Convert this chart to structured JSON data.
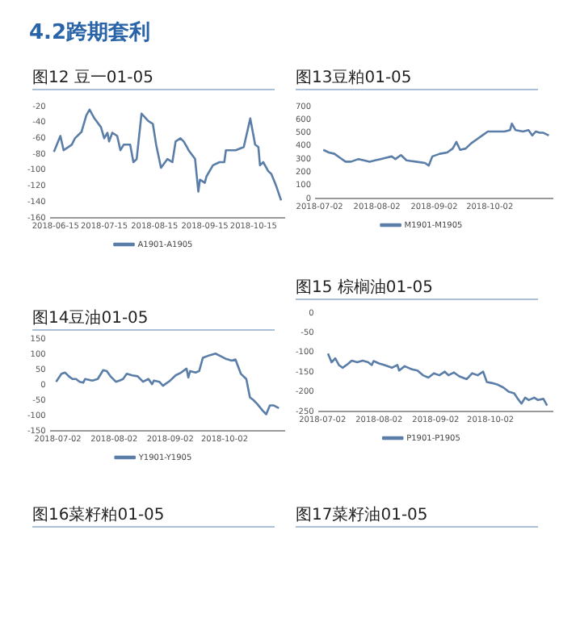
{
  "chart_data": [
    {
      "type": "line",
      "title": "图12 豆一01-05",
      "annotations": [
        "4.2跨期套利"
      ],
      "legend": "bottom",
      "xlim": [
        "2018-06-12",
        "2018-11-03"
      ],
      "xticks": [
        "2018-06-15",
        "2018-07-15",
        "2018-08-15",
        "2018-09-15",
        "2018-10-15"
      ],
      "ylim": [
        -160,
        -20
      ],
      "yticks": [
        -160,
        -140,
        -120,
        -100,
        -80,
        -60,
        -40,
        -20
      ],
      "x": [
        "2018-06-14",
        "2018-06-18",
        "2018-06-20",
        "2018-06-25",
        "2018-06-27",
        "2018-07-01",
        "2018-07-04",
        "2018-07-06",
        "2018-07-09",
        "2018-07-13",
        "2018-07-15",
        "2018-07-17",
        "2018-07-18",
        "2018-07-20",
        "2018-07-23",
        "2018-07-25",
        "2018-07-27",
        "2018-07-31",
        "2018-08-02",
        "2018-08-04",
        "2018-08-07",
        "2018-08-11",
        "2018-08-14",
        "2018-08-16",
        "2018-08-19",
        "2018-08-23",
        "2018-08-26",
        "2018-08-28",
        "2018-08-31",
        "2018-09-02",
        "2018-09-04",
        "2018-09-05",
        "2018-09-09",
        "2018-09-11",
        "2018-09-12",
        "2018-09-15",
        "2018-09-16",
        "2018-09-20",
        "2018-09-24",
        "2018-09-27",
        "2018-09-28",
        "2018-10-04",
        "2018-10-09",
        "2018-10-13",
        "2018-10-16",
        "2018-10-18",
        "2018-10-19",
        "2018-10-21",
        "2018-10-24",
        "2018-10-26",
        "2018-10-29",
        "2018-11-01"
      ],
      "series": [
        {
          "name": "A1901-A1905",
          "color": "#5a7ea8",
          "values": [
            -77,
            -57,
            -75,
            -68,
            -60,
            -52,
            -31,
            -24,
            -35,
            -46,
            -60,
            -53,
            -64,
            -53,
            -57,
            -75,
            -68,
            -68,
            -90,
            -86,
            -29,
            -38,
            -42,
            -68,
            -97,
            -86,
            -90,
            -64,
            -60,
            -64,
            -71,
            -75,
            -86,
            -127,
            -112,
            -116,
            -108,
            -94,
            -90,
            -90,
            -75,
            -75,
            -71,
            -35,
            -68,
            -71,
            -94,
            -90,
            -101,
            -105,
            -120,
            -138
          ]
        }
      ]
    },
    {
      "type": "line",
      "title": "图13豆粕01-05",
      "legend": "bottom",
      "xlim": [
        "2018-06-30",
        "2018-11-05"
      ],
      "xticks": [
        "2018-07-02",
        "2018-08-02",
        "2018-09-02",
        "2018-10-02"
      ],
      "ylim": [
        0,
        700
      ],
      "yticks": [
        0,
        100,
        200,
        300,
        400,
        500,
        600,
        700
      ],
      "x": [
        "2018-07-04",
        "2018-07-07",
        "2018-07-10",
        "2018-07-13",
        "2018-07-16",
        "2018-07-19",
        "2018-07-23",
        "2018-07-26",
        "2018-07-29",
        "2018-08-01",
        "2018-08-04",
        "2018-08-07",
        "2018-08-10",
        "2018-08-12",
        "2018-08-15",
        "2018-08-18",
        "2018-08-23",
        "2018-08-28",
        "2018-08-30",
        "2018-09-01",
        "2018-09-05",
        "2018-09-09",
        "2018-09-12",
        "2018-09-14",
        "2018-09-16",
        "2018-09-19",
        "2018-09-22",
        "2018-09-25",
        "2018-09-28",
        "2018-10-01",
        "2018-10-05",
        "2018-10-10",
        "2018-10-13",
        "2018-10-14",
        "2018-10-16",
        "2018-10-20",
        "2018-10-23",
        "2018-10-25",
        "2018-10-27",
        "2018-10-29",
        "2018-10-31",
        "2018-11-03"
      ],
      "series": [
        {
          "name": "M1901-M1905",
          "color": "#5a7ea8",
          "values": [
            370,
            350,
            340,
            310,
            280,
            280,
            300,
            290,
            280,
            290,
            300,
            310,
            320,
            300,
            330,
            290,
            280,
            270,
            250,
            320,
            340,
            350,
            380,
            430,
            370,
            380,
            420,
            450,
            480,
            510,
            510,
            510,
            520,
            570,
            520,
            510,
            520,
            480,
            510,
            500,
            500,
            480
          ]
        }
      ]
    },
    {
      "type": "line",
      "title": "图14豆油01-05",
      "annotations": [
        "图16菜籽粕01-05"
      ],
      "legend": "bottom",
      "xlim": [
        "2018-06-28",
        "2018-11-04"
      ],
      "xticks": [
        "2018-07-02",
        "2018-08-02",
        "2018-09-02",
        "2018-10-02"
      ],
      "ylim": [
        -150,
        150
      ],
      "yticks": [
        -150,
        -100,
        -50,
        0,
        50,
        100,
        150
      ],
      "x": [
        "2018-07-01",
        "2018-07-04",
        "2018-07-06",
        "2018-07-08",
        "2018-07-10",
        "2018-07-12",
        "2018-07-14",
        "2018-07-16",
        "2018-07-17",
        "2018-07-21",
        "2018-07-24",
        "2018-07-27",
        "2018-07-29",
        "2018-07-31",
        "2018-08-03",
        "2018-08-05",
        "2018-08-07",
        "2018-08-09",
        "2018-08-12",
        "2018-08-15",
        "2018-08-18",
        "2018-08-21",
        "2018-08-23",
        "2018-08-24",
        "2018-08-27",
        "2018-08-29",
        "2018-09-02",
        "2018-09-05",
        "2018-09-08",
        "2018-09-11",
        "2018-09-12",
        "2018-09-13",
        "2018-09-16",
        "2018-09-18",
        "2018-09-20",
        "2018-09-24",
        "2018-09-27",
        "2018-09-30",
        "2018-10-03",
        "2018-10-06",
        "2018-10-08",
        "2018-10-11",
        "2018-10-14",
        "2018-10-16",
        "2018-10-18",
        "2018-10-20",
        "2018-10-23",
        "2018-10-25",
        "2018-10-27",
        "2018-10-29",
        "2018-11-01"
      ],
      "series": [
        {
          "name": "Y1901-Y1905",
          "color": "#5a7ea8",
          "values": [
            10,
            36,
            40,
            28,
            19,
            19,
            10,
            7,
            19,
            14,
            19,
            48,
            45,
            28,
            10,
            14,
            19,
            36,
            31,
            28,
            10,
            19,
            2,
            14,
            10,
            -3,
            14,
            31,
            40,
            53,
            24,
            45,
            40,
            45,
            88,
            97,
            102,
            93,
            84,
            79,
            83,
            36,
            19,
            -41,
            -50,
            -62,
            -84,
            -96,
            -67,
            -67,
            -76
          ]
        }
      ]
    },
    {
      "type": "line",
      "title": "图15 棕榈油01-05",
      "annotations": [
        "图17菜籽油01-05"
      ],
      "legend": "bottom",
      "xlim": [
        "2018-06-30",
        "2018-11-05"
      ],
      "xticks": [
        "2018-07-02",
        "2018-08-02",
        "2018-09-02",
        "2018-10-02"
      ],
      "ylim": [
        -250,
        0
      ],
      "yticks": [
        -250,
        -200,
        -150,
        -100,
        -50,
        0
      ],
      "x": [
        "2018-07-05",
        "2018-07-07",
        "2018-07-09",
        "2018-07-11",
        "2018-07-13",
        "2018-07-16",
        "2018-07-18",
        "2018-07-21",
        "2018-07-24",
        "2018-07-27",
        "2018-07-29",
        "2018-07-30",
        "2018-08-02",
        "2018-08-05",
        "2018-08-09",
        "2018-08-12",
        "2018-08-13",
        "2018-08-16",
        "2018-08-20",
        "2018-08-23",
        "2018-08-26",
        "2018-08-29",
        "2018-09-01",
        "2018-09-04",
        "2018-09-07",
        "2018-09-09",
        "2018-09-12",
        "2018-09-15",
        "2018-09-19",
        "2018-09-22",
        "2018-09-25",
        "2018-09-28",
        "2018-09-30",
        "2018-10-03",
        "2018-10-06",
        "2018-10-09",
        "2018-10-12",
        "2018-10-15",
        "2018-10-17",
        "2018-10-19",
        "2018-10-21",
        "2018-10-23",
        "2018-10-26",
        "2018-10-28",
        "2018-10-31",
        "2018-11-02"
      ],
      "series": [
        {
          "name": "P1901-P1905",
          "color": "#5a7ea8",
          "values": [
            -103,
            -125,
            -115,
            -132,
            -139,
            -129,
            -121,
            -125,
            -121,
            -125,
            -132,
            -122,
            -128,
            -132,
            -139,
            -132,
            -146,
            -135,
            -143,
            -146,
            -158,
            -164,
            -153,
            -158,
            -149,
            -158,
            -151,
            -161,
            -168,
            -153,
            -158,
            -149,
            -175,
            -178,
            -182,
            -189,
            -200,
            -204,
            -218,
            -230,
            -215,
            -221,
            -215,
            -221,
            -218,
            -235
          ]
        }
      ]
    }
  ]
}
